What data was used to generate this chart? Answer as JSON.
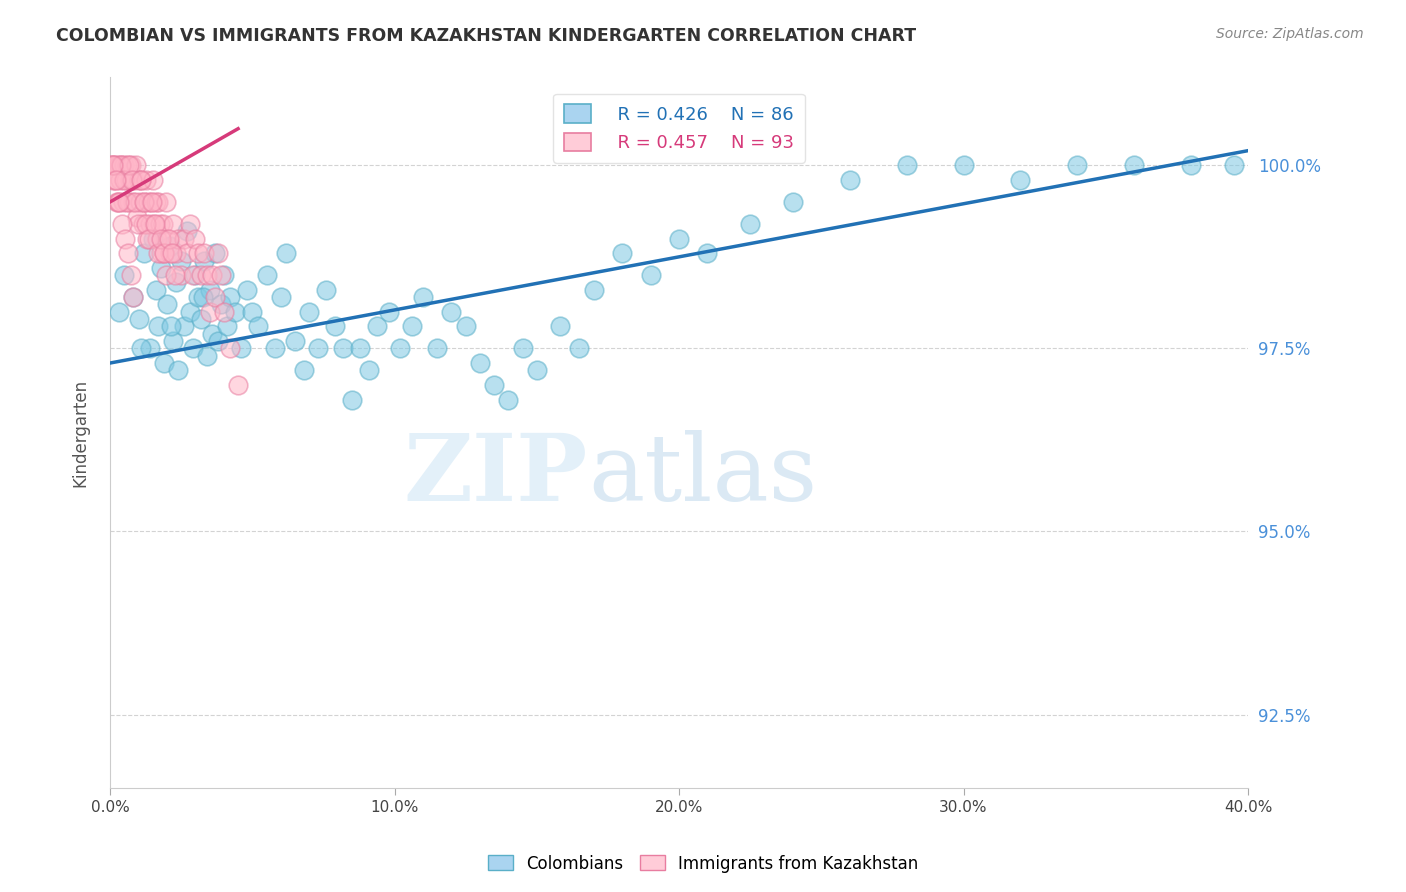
{
  "title": "COLOMBIAN VS IMMIGRANTS FROM KAZAKHSTAN KINDERGARTEN CORRELATION CHART",
  "source": "Source: ZipAtlas.com",
  "ylabel": "Kindergarten",
  "xlim": [
    0.0,
    40.0
  ],
  "ylim": [
    91.5,
    101.2
  ],
  "blue_color": "#7ec8e3",
  "blue_edge_color": "#5aafc8",
  "blue_line_color": "#2171b5",
  "pink_color": "#ffb6c8",
  "pink_edge_color": "#e87da0",
  "pink_line_color": "#d63a7a",
  "legend_blue_R": "R = 0.426",
  "legend_blue_N": "N = 86",
  "legend_pink_R": "R = 0.457",
  "legend_pink_N": "N = 93",
  "watermark": "ZIPatlas",
  "background_color": "#ffffff",
  "grid_color": "#c8c8c8",
  "title_color": "#333333",
  "right_tick_color": "#4a90d9",
  "blue_scatter_x": [
    0.3,
    0.5,
    0.8,
    1.0,
    1.2,
    1.4,
    1.5,
    1.6,
    1.7,
    1.8,
    1.9,
    2.0,
    2.1,
    2.2,
    2.3,
    2.4,
    2.5,
    2.6,
    2.7,
    2.8,
    2.9,
    3.0,
    3.1,
    3.2,
    3.3,
    3.4,
    3.5,
    3.6,
    3.7,
    3.8,
    3.9,
    4.0,
    4.1,
    4.2,
    4.4,
    4.6,
    4.8,
    5.0,
    5.2,
    5.5,
    5.8,
    6.0,
    6.2,
    6.5,
    6.8,
    7.0,
    7.3,
    7.6,
    7.9,
    8.2,
    8.5,
    8.8,
    9.1,
    9.4,
    9.8,
    10.2,
    10.6,
    11.0,
    11.5,
    12.0,
    12.5,
    13.0,
    13.5,
    14.0,
    14.5,
    15.0,
    15.8,
    16.5,
    17.0,
    18.0,
    19.0,
    20.0,
    21.0,
    22.5,
    24.0,
    26.0,
    28.0,
    30.0,
    32.0,
    34.0,
    36.0,
    38.0,
    39.5,
    1.1,
    2.15,
    3.25
  ],
  "blue_scatter_y": [
    98.0,
    98.5,
    98.2,
    97.9,
    98.8,
    97.5,
    99.0,
    98.3,
    97.8,
    98.6,
    97.3,
    98.1,
    98.9,
    97.6,
    98.4,
    97.2,
    98.7,
    97.8,
    99.1,
    98.0,
    97.5,
    98.5,
    98.2,
    97.9,
    98.7,
    97.4,
    98.3,
    97.7,
    98.8,
    97.6,
    98.1,
    98.5,
    97.8,
    98.2,
    98.0,
    97.5,
    98.3,
    98.0,
    97.8,
    98.5,
    97.5,
    98.2,
    98.8,
    97.6,
    97.2,
    98.0,
    97.5,
    98.3,
    97.8,
    97.5,
    96.8,
    97.5,
    97.2,
    97.8,
    98.0,
    97.5,
    97.8,
    98.2,
    97.5,
    98.0,
    97.8,
    97.3,
    97.0,
    96.8,
    97.5,
    97.2,
    97.8,
    97.5,
    98.3,
    98.8,
    98.5,
    99.0,
    98.8,
    99.2,
    99.5,
    99.8,
    100.0,
    100.0,
    99.8,
    100.0,
    100.0,
    100.0,
    100.0,
    97.5,
    97.8,
    98.2
  ],
  "pink_scatter_x": [
    0.05,
    0.1,
    0.15,
    0.2,
    0.25,
    0.3,
    0.35,
    0.4,
    0.45,
    0.5,
    0.55,
    0.6,
    0.65,
    0.7,
    0.75,
    0.8,
    0.85,
    0.9,
    0.95,
    1.0,
    1.05,
    1.1,
    1.15,
    1.2,
    1.25,
    1.3,
    1.35,
    1.4,
    1.45,
    1.5,
    1.55,
    1.6,
    1.65,
    1.7,
    1.75,
    1.8,
    1.85,
    1.9,
    1.95,
    2.0,
    2.1,
    2.2,
    2.3,
    2.4,
    2.5,
    2.6,
    2.7,
    2.8,
    2.9,
    3.0,
    3.1,
    3.2,
    3.3,
    3.4,
    3.5,
    3.6,
    3.7,
    3.8,
    3.9,
    4.0,
    4.2,
    4.5,
    0.08,
    0.18,
    0.28,
    0.38,
    0.48,
    0.58,
    0.68,
    0.78,
    0.88,
    0.98,
    1.08,
    1.18,
    1.28,
    1.38,
    1.48,
    1.58,
    1.68,
    1.78,
    1.88,
    1.98,
    2.08,
    2.18,
    2.28,
    0.12,
    0.22,
    0.32,
    0.42,
    0.52,
    0.62,
    0.72,
    0.82
  ],
  "pink_scatter_y": [
    100.0,
    99.8,
    100.0,
    100.0,
    99.5,
    100.0,
    99.8,
    100.0,
    99.5,
    100.0,
    99.8,
    100.0,
    99.5,
    99.8,
    100.0,
    99.5,
    99.8,
    100.0,
    99.3,
    99.8,
    99.5,
    99.8,
    99.2,
    99.5,
    99.8,
    99.0,
    99.5,
    99.2,
    99.5,
    99.8,
    99.2,
    99.5,
    99.0,
    99.5,
    99.2,
    98.8,
    99.2,
    98.8,
    99.5,
    99.0,
    98.8,
    99.2,
    98.8,
    99.0,
    98.5,
    99.0,
    98.8,
    99.2,
    98.5,
    99.0,
    98.8,
    98.5,
    98.8,
    98.5,
    98.0,
    98.5,
    98.2,
    98.8,
    98.5,
    98.0,
    97.5,
    97.0,
    100.0,
    99.8,
    99.5,
    100.0,
    99.8,
    99.5,
    100.0,
    99.8,
    99.5,
    99.2,
    99.8,
    99.5,
    99.2,
    99.0,
    99.5,
    99.2,
    98.8,
    99.0,
    98.8,
    98.5,
    99.0,
    98.8,
    98.5,
    100.0,
    99.8,
    99.5,
    99.2,
    99.0,
    98.8,
    98.5,
    98.2
  ]
}
